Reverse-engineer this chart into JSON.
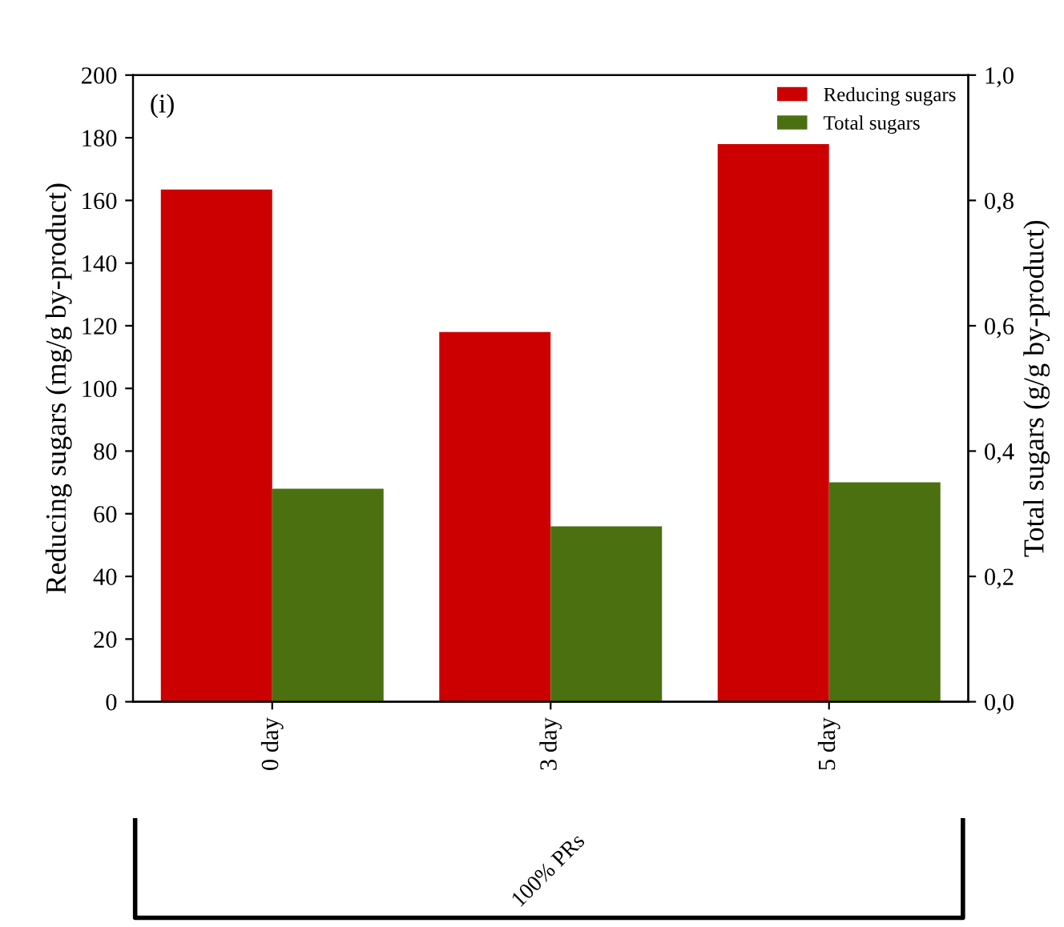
{
  "chart_data": {
    "type": "bar",
    "categories": [
      "0 day",
      "3 day",
      "5 day"
    ],
    "series": [
      {
        "name": "Reducing sugars",
        "color": "#cc0000",
        "values": [
          163.5,
          118,
          178
        ]
      },
      {
        "name": "Total sugars",
        "color": "#4a7010",
        "values": [
          0.34,
          0.28,
          0.35
        ],
        "axis": "y2"
      }
    ],
    "ylabel": "Reducing sugars (mg/g by-product)",
    "y2label": "Total sugars (g/g by-product)",
    "ylim": [
      0,
      200
    ],
    "yticks": [
      0,
      20,
      40,
      60,
      80,
      100,
      120,
      140,
      160,
      180,
      200
    ],
    "y2lim": [
      0,
      1.0
    ],
    "y2ticks": [
      {
        "value": 0,
        "label": "0,0"
      },
      {
        "value": 0.2,
        "label": "0,2"
      },
      {
        "value": 0.4,
        "label": "0,4"
      },
      {
        "value": 0.6,
        "label": "0,6"
      },
      {
        "value": 0.8,
        "label": "0,8"
      },
      {
        "value": 1.0,
        "label": "1,0"
      }
    ],
    "annotations": [
      "(i)",
      "100% PRs"
    ],
    "legend": "top right",
    "grid": false
  }
}
